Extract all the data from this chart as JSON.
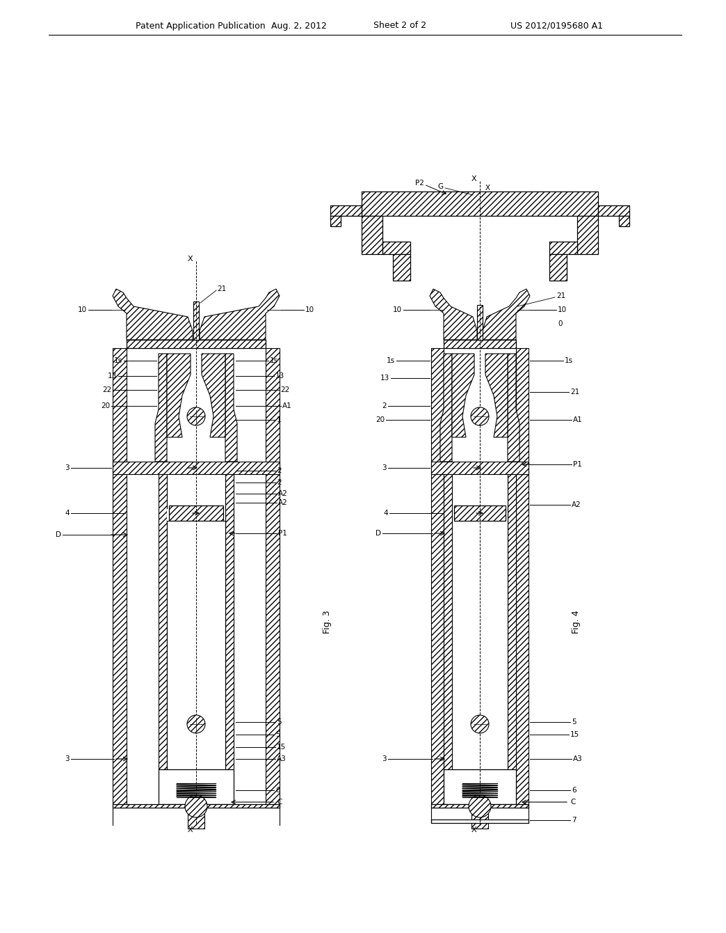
{
  "background_color": "#ffffff",
  "title_header": "Patent Application Publication",
  "title_date": "Aug. 2, 2012",
  "title_sheet": "Sheet 2 of 2",
  "title_patent": "US 2012/0195680 A1",
  "fig3_label": "Fig. 3",
  "fig4_label": "Fig. 4",
  "line_color": "#000000",
  "text_color": "#000000"
}
